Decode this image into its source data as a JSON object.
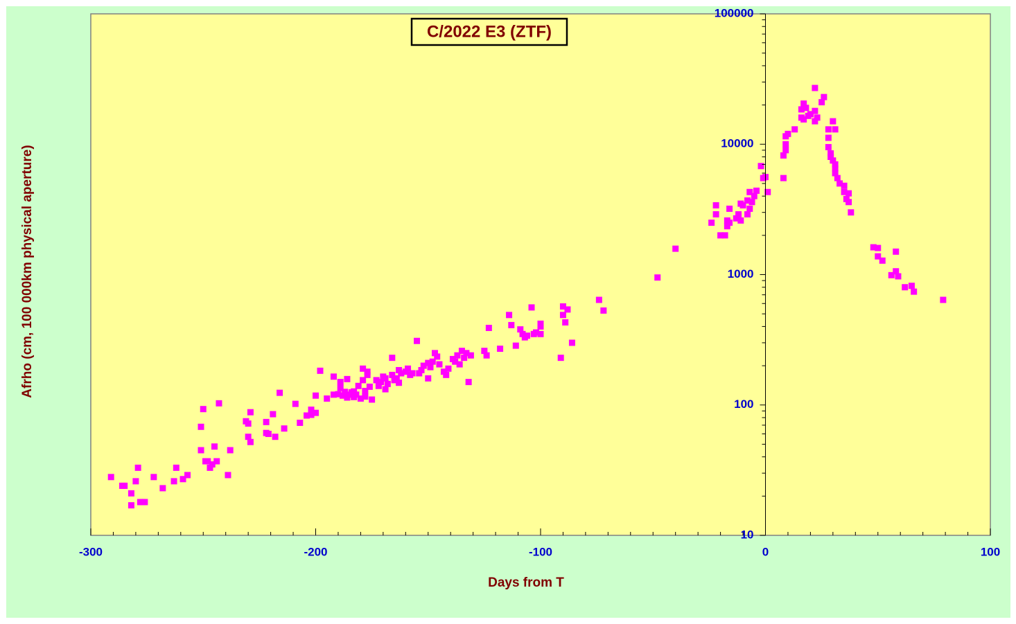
{
  "chart_data": {
    "type": "scatter",
    "title": "C/2022 E3 (ZTF)",
    "xlabel": "Days from T",
    "ylabel": "Afrho (cm, 100 000km physical aperture)",
    "color": "#ff00ff",
    "ylog": true,
    "xlim": [
      -300,
      100
    ],
    "xticks": [
      -300,
      -200,
      -100,
      0,
      100
    ],
    "ylim": [
      10,
      100000
    ],
    "yticks": [
      10,
      100,
      1000,
      10000,
      100000
    ],
    "x": [
      -291,
      -286,
      -285,
      -282,
      -282,
      -280,
      -279,
      -278,
      -277,
      -276,
      -272,
      -268,
      -263,
      -262,
      -259,
      -257,
      -251,
      -251,
      -250,
      -249,
      -248,
      -247,
      -246,
      -245,
      -244,
      -243,
      -239,
      -238,
      -231,
      -230,
      -230,
      -229,
      -229,
      -222,
      -222,
      -221,
      -219,
      -218,
      -216,
      -214,
      -209,
      -207,
      -204,
      -202,
      -202,
      -200,
      -200,
      -198,
      -195,
      -192,
      -192,
      -190,
      -189,
      -189,
      -188,
      -187,
      -186,
      -186,
      -185,
      -184,
      -183,
      -183,
      -182,
      -181,
      -180,
      -179,
      -179,
      -178,
      -178,
      -177,
      -177,
      -176,
      -175,
      -173,
      -172,
      -171,
      -170,
      -169,
      -169,
      -168,
      -166,
      -166,
      -165,
      -164,
      -163,
      -163,
      -162,
      -160,
      -159,
      -158,
      -157,
      -155,
      -154,
      -153,
      -152,
      -150,
      -150,
      -149,
      -148,
      -147,
      -146,
      -145,
      -143,
      -142,
      -141,
      -139,
      -138,
      -137,
      -136,
      -135,
      -134,
      -133,
      -132,
      -131,
      -125,
      -124,
      -123,
      -118,
      -114,
      -113,
      -111,
      -109,
      -108,
      -107,
      -106,
      -104,
      -103,
      -102,
      -100,
      -100,
      -100,
      -91,
      -90,
      -90,
      -89,
      -88,
      -86,
      -74,
      -72,
      -48,
      -40,
      -24,
      -22,
      -22,
      -20,
      -18,
      -17,
      -17,
      -16,
      -16,
      -13,
      -12,
      -11,
      -11,
      -10,
      -8,
      -8,
      -7,
      -7,
      -6,
      -5,
      -4,
      -2,
      -1,
      0,
      1,
      8,
      8,
      9,
      9,
      9,
      10,
      13,
      16,
      16,
      17,
      17,
      18,
      19,
      20,
      22,
      22,
      22,
      23,
      25,
      26,
      28,
      28,
      28,
      29,
      29,
      30,
      30,
      31,
      31,
      31,
      31,
      32,
      33,
      35,
      35,
      36,
      37,
      37,
      38,
      48,
      50,
      50,
      52,
      56,
      58,
      58,
      59,
      62,
      65,
      66,
      79
    ],
    "values": [
      28,
      24,
      24,
      21,
      17,
      26,
      33,
      18,
      18,
      18,
      28,
      23,
      26,
      33,
      27,
      29,
      68,
      45,
      93,
      37,
      37,
      33,
      35,
      48,
      37,
      103,
      29,
      45,
      75,
      57,
      72,
      52,
      88,
      74,
      61,
      60,
      85,
      57,
      124,
      66,
      102,
      73,
      83,
      92,
      84,
      87,
      118,
      183,
      112,
      120,
      165,
      121,
      135,
      150,
      118,
      126,
      114,
      158,
      120,
      125,
      127,
      115,
      120,
      140,
      112,
      155,
      190,
      116,
      128,
      170,
      180,
      138,
      110,
      155,
      140,
      150,
      165,
      160,
      132,
      145,
      230,
      170,
      155,
      160,
      148,
      185,
      175,
      180,
      190,
      170,
      175,
      310,
      175,
      185,
      200,
      160,
      210,
      195,
      215,
      250,
      235,
      205,
      180,
      170,
      190,
      225,
      215,
      240,
      205,
      260,
      230,
      250,
      150,
      240,
      260,
      240,
      390,
      270,
      490,
      410,
      285,
      380,
      350,
      330,
      340,
      560,
      350,
      360,
      420,
      400,
      350,
      230,
      570,
      490,
      430,
      540,
      300,
      640,
      530,
      950,
      1580,
      2500,
      3400,
      2900,
      2000,
      2000,
      2600,
      2350,
      2500,
      3200,
      2700,
      2900,
      2600,
      3500,
      3400,
      2900,
      3700,
      3200,
      4300,
      3600,
      4000,
      4400,
      6800,
      5500,
      5600,
      4300,
      5500,
      8200,
      9000,
      10000,
      11500,
      12000,
      13000,
      16000,
      18500,
      20500,
      15500,
      19000,
      16500,
      17000,
      18000,
      15000,
      27000,
      16000,
      21000,
      23000,
      13000,
      11200,
      9500,
      8500,
      8000,
      15000,
      7500,
      13000,
      7000,
      6500,
      6000,
      5500,
      5000,
      4800,
      4300,
      3800,
      4200,
      3600,
      3000,
      1620,
      1600,
      1380,
      1280,
      990,
      1500,
      1060,
      970,
      800,
      820,
      740,
      640
    ]
  }
}
